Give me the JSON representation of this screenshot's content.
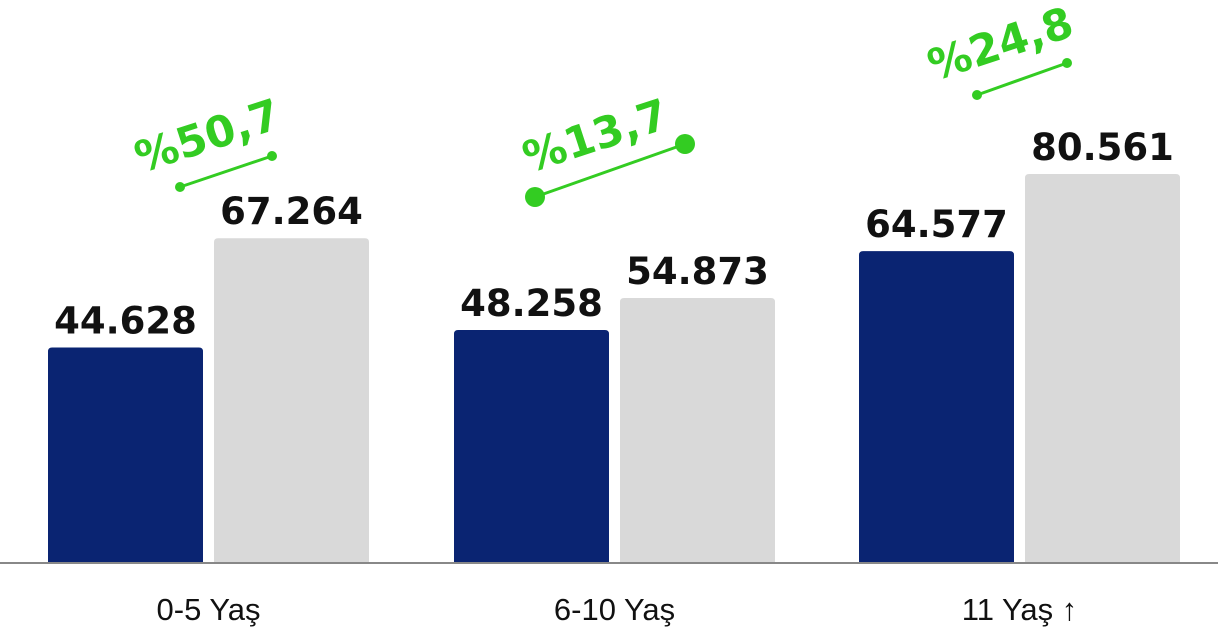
{
  "chart_data": {
    "type": "bar",
    "categories": [
      "0-5 Yaş",
      "6-10 Yaş",
      "11 Yaş ↑"
    ],
    "series": [
      {
        "values": [
          44628,
          48258,
          64577
        ],
        "labels": [
          "44.628",
          "48.258",
          "64.577"
        ],
        "color": "#0a2472"
      },
      {
        "values": [
          67264,
          54873,
          80561
        ],
        "labels": [
          "67.264",
          "54.873",
          "80.561"
        ],
        "color": "#d9d9d9"
      }
    ],
    "annotations": [
      "%50,7",
      "%13,7",
      "%24,8"
    ],
    "annotation_color": "#33cc22",
    "axis_color": "#888888",
    "ylim": [
      0,
      90000
    ],
    "grid": false,
    "legend": "none"
  }
}
